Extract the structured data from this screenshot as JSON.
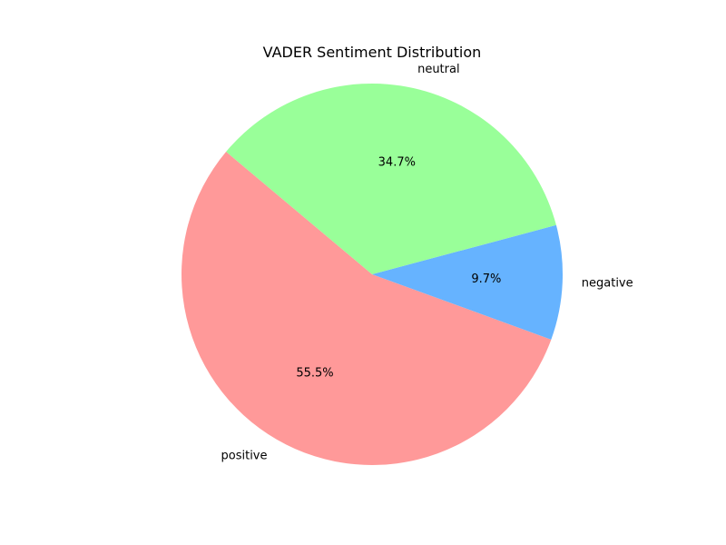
{
  "chart_data": {
    "type": "pie",
    "title": "VADER Sentiment Distribution",
    "slices": [
      {
        "label": "positive",
        "value": 55.5,
        "display": "55.5%",
        "color": "#ff9999"
      },
      {
        "label": "negative",
        "value": 9.7,
        "display": "9.7%",
        "color": "#66b3ff"
      },
      {
        "label": "neutral",
        "value": 34.7,
        "display": "34.7%",
        "color": "#99ff99"
      }
    ],
    "start_angle_deg": 140,
    "direction": "counterclockwise",
    "legend": "none"
  }
}
